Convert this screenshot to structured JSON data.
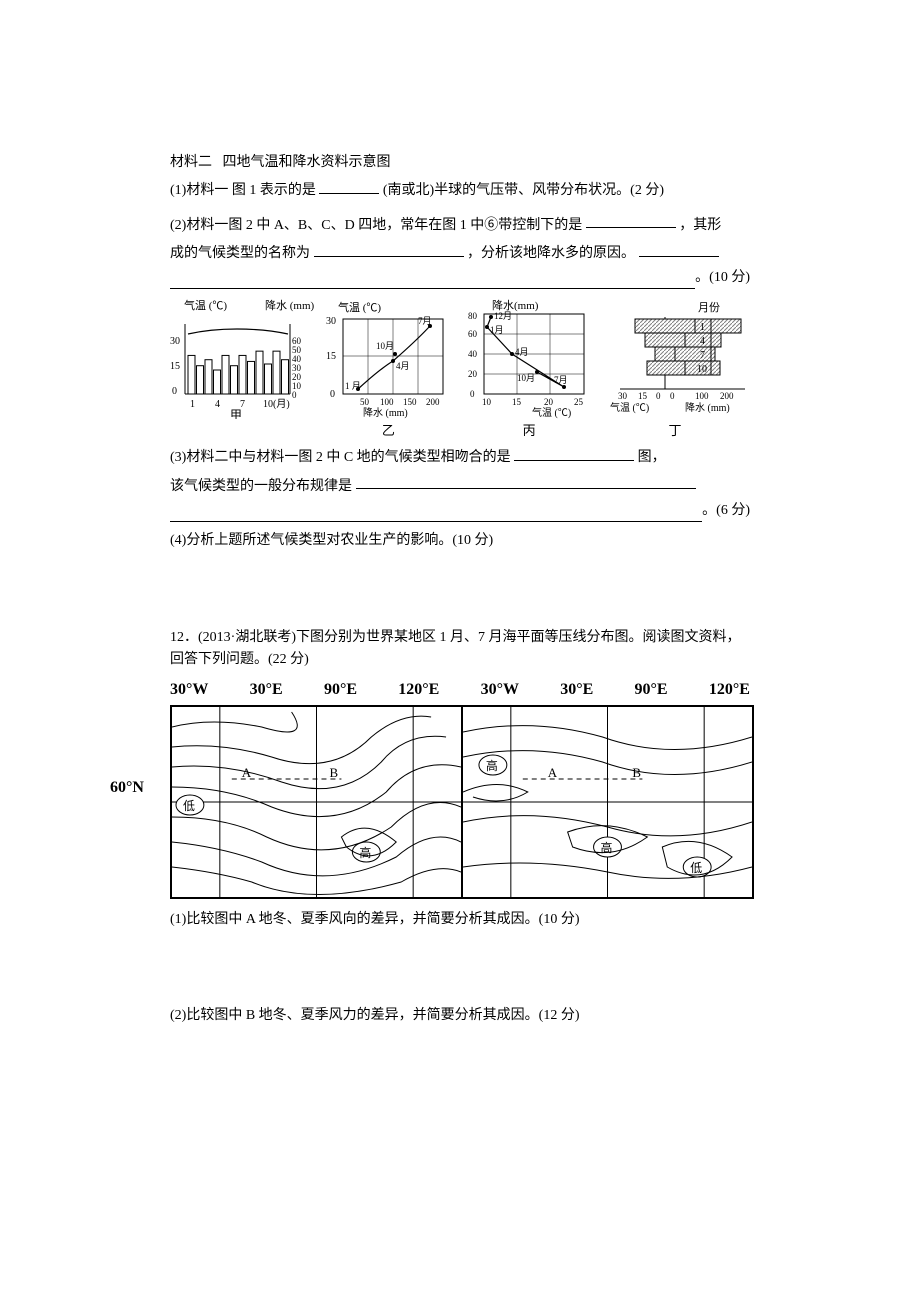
{
  "intro": {
    "material_label": "材料二",
    "material_title": "四地气温和降水资料示意图",
    "q1_pre": "(1)材料一 图 1 表示的是",
    "q1_post": "(南或北)半球的气压带、风带分布状况。(2 分)",
    "q2_pre": "(2)材料一图 2 中 A、B、C、D 四地，常年在图 1 中⑥带控制下的是",
    "q2_mid1": "，其形",
    "q2_line2_pre": "成的气候类型的名称为",
    "q2_mid2": "，分析该地降水多的原因。",
    "q2_tail": "。(10 分)"
  },
  "charts": {
    "jia": {
      "label": "甲",
      "temp_axis": "气温 (℃)",
      "precip_axis": "降水 (mm)",
      "x_label": "1    4    7   10(月)",
      "temp_ticks": [
        0,
        15,
        30
      ],
      "precip_ticks": [
        0,
        10,
        20,
        30,
        40,
        50,
        60
      ],
      "bar_values": [
        45,
        33,
        40,
        28,
        45,
        33,
        45,
        38,
        50,
        35,
        50,
        40
      ],
      "temp_line": {
        "x": [
          1,
          2,
          3,
          4,
          5,
          6,
          7,
          8,
          9,
          10,
          11,
          12
        ],
        "y": [
          25,
          25,
          25,
          25,
          25,
          25,
          25,
          25,
          25,
          25,
          25,
          25
        ]
      },
      "stroke": "#000000",
      "fill": "#ffffff",
      "bg": "#ffffff"
    },
    "yi": {
      "label": "乙",
      "temp_axis": "气温 (℃)",
      "precip_axis_x": "降水 (mm)",
      "temp_ticks": [
        0,
        15,
        30
      ],
      "precip_ticks": [
        0,
        50,
        100,
        150,
        200
      ],
      "points": [
        {
          "m": "1 月",
          "t": 2,
          "p": 30
        },
        {
          "m": "4月",
          "t": 13,
          "p": 100
        },
        {
          "m": "7月",
          "t": 27,
          "p": 175
        },
        {
          "m": "10月",
          "t": 16,
          "p": 105
        }
      ],
      "stroke": "#000000",
      "fill": "#ffffff"
    },
    "bing": {
      "label": "丙",
      "precip_axis": "降水(mm)",
      "temp_axis_x": "气温 (℃)",
      "precip_ticks": [
        0,
        20,
        40,
        60,
        80
      ],
      "temp_ticks": [
        10,
        15,
        20,
        25
      ],
      "points": [
        {
          "m": "12月",
          "t": 11,
          "p": 83
        },
        {
          "m": "1月",
          "t": 10,
          "p": 72
        },
        {
          "m": "4月",
          "t": 14,
          "p": 42
        },
        {
          "m": "7月",
          "t": 22,
          "p": 10
        },
        {
          "m": "10月",
          "t": 18,
          "p": 24
        }
      ],
      "stroke": "#000000",
      "fill": "#ffffff"
    },
    "ding": {
      "label": "丁",
      "month_label": "月份",
      "temp_axis": "气温 (℃)",
      "precip_axis": "降水 (mm)",
      "months": [
        "1",
        "4",
        "7",
        "10"
      ],
      "temp_ticks": [
        "30",
        "15",
        "0"
      ],
      "temp_ticks_reflect": [
        "0"
      ],
      "precip_ticks": [
        "100",
        "200"
      ],
      "temp_vals": [
        28,
        22,
        14,
        20
      ],
      "precip_vals": [
        190,
        60,
        15,
        55
      ],
      "hatch": "#b5b5b5",
      "stroke": "#000000"
    }
  },
  "afterCharts": {
    "q3_pre": "(3)材料二中与材料一图 2 中 C 地的气候类型相吻合的是",
    "q3_post": "图，",
    "q3_line2": "该气候类型的一般分布规律是",
    "q3_tail": "。(6 分)",
    "q4": "(4)分析上题所述气候类型对农业生产的影响。(10 分)"
  },
  "q12": {
    "head": "12．(2013·湖北联考)下图分别为世界某地区 1 月、7 月海平面等压线分布图。阅读图文资料，回答下列问题。(22 分)",
    "lons": [
      "30°W",
      "30°E",
      "90°E",
      "120°E",
      "30°W",
      "30°E",
      "90°E",
      "120°E"
    ],
    "lat": "60°N",
    "labels": {
      "high": "高",
      "low": "低",
      "A": "A",
      "B": "B"
    },
    "stroke": "#000000",
    "bg": "#ffffff",
    "sub1": "(1)比较图中 A 地冬、夏季风向的差异，并简要分析其成因。(10 分)",
    "sub2": "(2)比较图中 B 地冬、夏季风力的差异，并简要分析其成因。(12 分)"
  }
}
